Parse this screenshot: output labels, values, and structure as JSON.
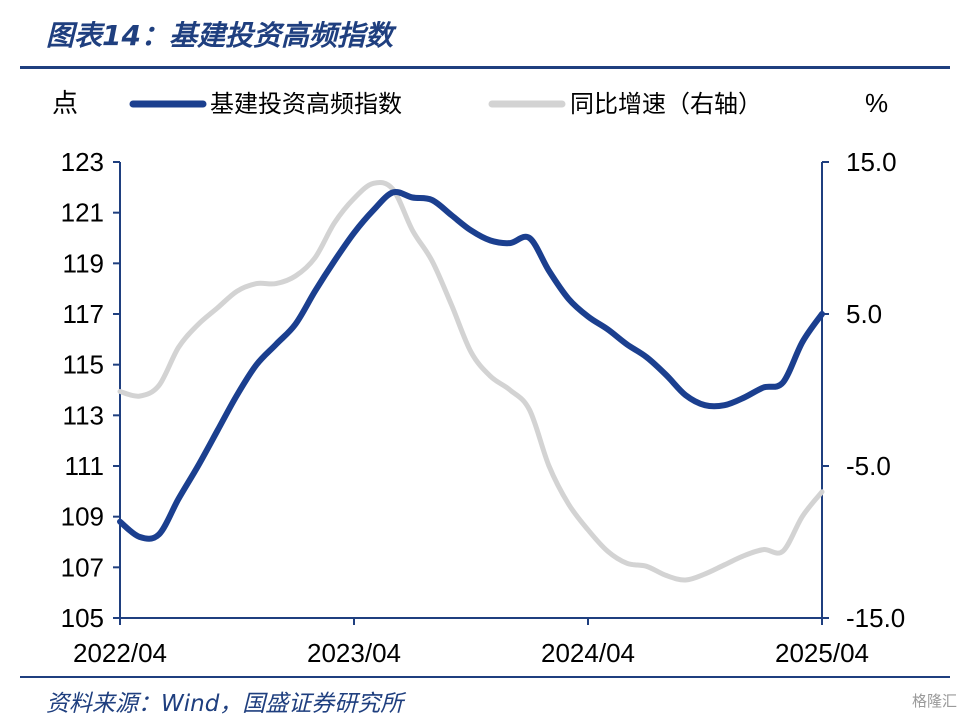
{
  "title": "图表14：基建投资高频指数",
  "source": "资料来源：Wind，国盛证券研究所",
  "watermark": "格隆汇",
  "colors": {
    "brand": "#1f3f7f",
    "series1": "#1b3f8f",
    "series2": "#d3d3d3",
    "axis": "#1f3f7f"
  },
  "chart_data": {
    "type": "line",
    "left_unit": "点",
    "right_unit": "%",
    "x_ticks": [
      "2022/04",
      "2023/04",
      "2024/04",
      "2025/04"
    ],
    "x_range": [
      "2022/04",
      "2025/04"
    ],
    "left_axis": {
      "ylim": [
        105,
        123
      ],
      "ticks": [
        "123",
        "121",
        "119",
        "117",
        "115",
        "113",
        "111",
        "109",
        "107",
        "105"
      ]
    },
    "right_axis": {
      "ylim": [
        -15,
        15
      ],
      "ticks": [
        "15.0",
        "5.0",
        "-5.0",
        "-15.0"
      ]
    },
    "legend_position": "top",
    "series": [
      {
        "name": "基建投资高频指数",
        "axis": "left",
        "color": "#1b3f8f",
        "points": [
          [
            "2022/04",
            108.8
          ],
          [
            "2022/05",
            108.2
          ],
          [
            "2022/06",
            108.3
          ],
          [
            "2022/07",
            109.7
          ],
          [
            "2022/08",
            111.0
          ],
          [
            "2022/09",
            112.4
          ],
          [
            "2022/10",
            113.8
          ],
          [
            "2022/11",
            115.0
          ],
          [
            "2022/12",
            115.8
          ],
          [
            "2023/01",
            116.6
          ],
          [
            "2023/02",
            117.9
          ],
          [
            "2023/03",
            119.1
          ],
          [
            "2023/04",
            120.2
          ],
          [
            "2023/05",
            121.1
          ],
          [
            "2023/06",
            121.8
          ],
          [
            "2023/07",
            121.6
          ],
          [
            "2023/08",
            121.5
          ],
          [
            "2023/09",
            120.9
          ],
          [
            "2023/10",
            120.3
          ],
          [
            "2023/11",
            119.9
          ],
          [
            "2023/12",
            119.8
          ],
          [
            "2024/01",
            120.0
          ],
          [
            "2024/02",
            118.7
          ],
          [
            "2024/03",
            117.6
          ],
          [
            "2024/04",
            116.9
          ],
          [
            "2024/05",
            116.4
          ],
          [
            "2024/06",
            115.8
          ],
          [
            "2024/07",
            115.3
          ],
          [
            "2024/08",
            114.6
          ],
          [
            "2024/09",
            113.8
          ],
          [
            "2024/10",
            113.4
          ],
          [
            "2024/11",
            113.4
          ],
          [
            "2024/12",
            113.7
          ],
          [
            "2025/01",
            114.1
          ],
          [
            "2025/02",
            114.3
          ],
          [
            "2025/03",
            115.9
          ],
          [
            "2025/04",
            117.0
          ]
        ]
      },
      {
        "name": "同比增速（右轴）",
        "axis": "right",
        "color": "#d3d3d3",
        "points": [
          [
            "2022/04",
            -0.1
          ],
          [
            "2022/05",
            -0.4
          ],
          [
            "2022/06",
            0.3
          ],
          [
            "2022/07",
            2.8
          ],
          [
            "2022/08",
            4.3
          ],
          [
            "2022/09",
            5.4
          ],
          [
            "2022/10",
            6.5
          ],
          [
            "2022/11",
            7.0
          ],
          [
            "2022/12",
            7.0
          ],
          [
            "2023/01",
            7.5
          ],
          [
            "2023/02",
            8.7
          ],
          [
            "2023/03",
            11.0
          ],
          [
            "2023/04",
            12.6
          ],
          [
            "2023/05",
            13.6
          ],
          [
            "2023/06",
            13.2
          ],
          [
            "2023/07",
            10.5
          ],
          [
            "2023/08",
            8.5
          ],
          [
            "2023/09",
            5.6
          ],
          [
            "2023/10",
            2.5
          ],
          [
            "2023/11",
            0.9
          ],
          [
            "2023/12",
            0.0
          ],
          [
            "2024/01",
            -1.3
          ],
          [
            "2024/02",
            -5.0
          ],
          [
            "2024/03",
            -7.5
          ],
          [
            "2024/04",
            -9.2
          ],
          [
            "2024/05",
            -10.6
          ],
          [
            "2024/06",
            -11.4
          ],
          [
            "2024/07",
            -11.6
          ],
          [
            "2024/08",
            -12.2
          ],
          [
            "2024/09",
            -12.5
          ],
          [
            "2024/10",
            -12.1
          ],
          [
            "2024/11",
            -11.5
          ],
          [
            "2024/12",
            -10.9
          ],
          [
            "2025/01",
            -10.5
          ],
          [
            "2025/02",
            -10.6
          ],
          [
            "2025/03",
            -8.3
          ],
          [
            "2025/04",
            -6.7
          ]
        ]
      }
    ]
  }
}
